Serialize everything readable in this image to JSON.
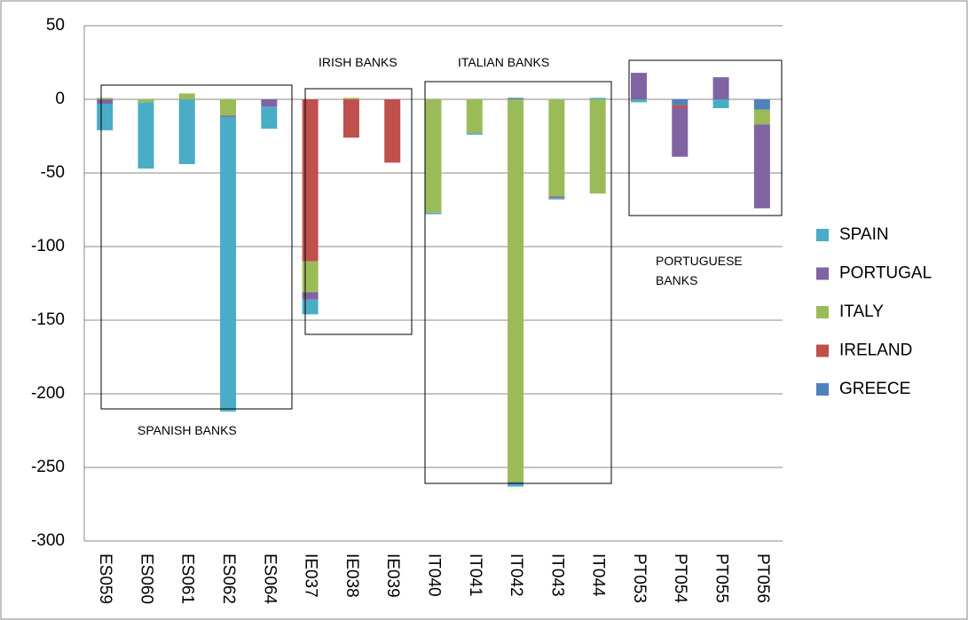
{
  "chart_data": {
    "type": "stacked_bar",
    "categories": [
      "ES059",
      "ES060",
      "ES061",
      "ES062",
      "ES064",
      "IE037",
      "IE038",
      "IE039",
      "IT040",
      "IT041",
      "IT042",
      "IT043",
      "IT044",
      "PT053",
      "PT054",
      "PT055",
      "PT056"
    ],
    "series": [
      {
        "name": "SPAIN",
        "color": "#4bacc6",
        "values": [
          -18,
          -45,
          -44,
          -200,
          -15,
          -10,
          0,
          0,
          -1,
          -1,
          -2,
          -1,
          1,
          -2,
          0,
          -6,
          0
        ]
      },
      {
        "name": "PORTUGAL",
        "color": "#8064a2",
        "values": [
          -3,
          0,
          0,
          -1,
          -5,
          -5,
          0,
          0,
          0,
          0,
          -1,
          -1,
          0,
          18,
          -33,
          15,
          -57
        ]
      },
      {
        "name": "ITALY",
        "color": "#9bbb59",
        "values": [
          1,
          -2,
          4,
          -11,
          0,
          -21,
          1,
          0,
          -77,
          -23,
          -260,
          -66,
          -64,
          0,
          0,
          0,
          -10
        ]
      },
      {
        "name": "IRELAND",
        "color": "#c0504d",
        "values": [
          0,
          0,
          0,
          0,
          0,
          -110,
          -26,
          -43,
          0,
          0,
          0,
          0,
          0,
          0,
          -2,
          0,
          0
        ]
      },
      {
        "name": "GREECE",
        "color": "#4f81bd",
        "values": [
          0,
          0,
          0,
          0,
          0,
          0,
          0,
          0,
          0,
          0,
          1,
          0,
          0,
          0,
          -4,
          0,
          -7
        ]
      }
    ],
    "ylim": [
      -300,
      50
    ],
    "yticks": [
      50,
      0,
      -50,
      -100,
      -150,
      -200,
      -250,
      -300
    ],
    "grid": true,
    "legend": "right",
    "annotations": [
      "SPANISH BANKS",
      "IRISH BANKS",
      "ITALIAN BANKS",
      "PORTUGUESE BANKS"
    ]
  }
}
